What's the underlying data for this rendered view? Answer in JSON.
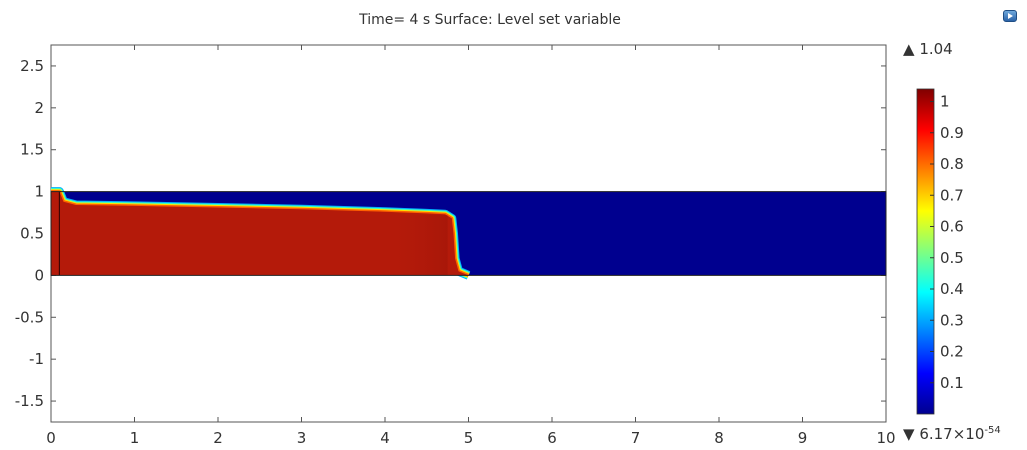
{
  "title": "Time= 4 s Surface: Level set variable",
  "max_label": {
    "symbol": "▲",
    "value": "1.04"
  },
  "min_label": {
    "symbol": "▼",
    "mantissa": "6.17×10",
    "exponent": "-54"
  },
  "colors": {
    "fluid_high": "#b41a0a",
    "fluid_low": "#00008f",
    "colormap": [
      "#00008f",
      "#0000ff",
      "#0080ff",
      "#00ffff",
      "#80ff80",
      "#ffff00",
      "#ff8000",
      "#ff0000",
      "#800000"
    ]
  },
  "chart_data": {
    "type": "heatmap",
    "title": "Time= 4 s Surface: Level set variable",
    "xlabel": "",
    "ylabel": "",
    "xlim": [
      0,
      10
    ],
    "ylim": [
      -1.75,
      2.75
    ],
    "x_ticks": [
      "0",
      "1",
      "2",
      "3",
      "4",
      "5",
      "6",
      "7",
      "8",
      "9",
      "10"
    ],
    "y_ticks": [
      "2.5",
      "2",
      "1.5",
      "1",
      "0.5",
      "0",
      "-0.5",
      "-1",
      "-1.5"
    ],
    "y_tick_values": [
      2.5,
      2,
      1.5,
      1,
      0.5,
      0,
      -0.5,
      -1,
      -1.5
    ],
    "domain": {
      "x": [
        0,
        10
      ],
      "y": [
        0,
        1
      ]
    },
    "interface_profile": [
      [
        0.1,
        1.0
      ],
      [
        0.15,
        0.88
      ],
      [
        0.3,
        0.84
      ],
      [
        1,
        0.83
      ],
      [
        2,
        0.81
      ],
      [
        3,
        0.79
      ],
      [
        4,
        0.76
      ],
      [
        4.5,
        0.74
      ],
      [
        4.72,
        0.73
      ],
      [
        4.8,
        0.68
      ],
      [
        4.82,
        0.5
      ],
      [
        4.84,
        0.2
      ],
      [
        4.88,
        0.05
      ],
      [
        5.0,
        0.0
      ]
    ],
    "wall_line_x": 0.1,
    "colorbar": {
      "min": 0,
      "max": 1.04,
      "ticks": [
        "1",
        "0.9",
        "0.8",
        "0.7",
        "0.6",
        "0.5",
        "0.4",
        "0.3",
        "0.2",
        "0.1"
      ],
      "tick_values": [
        1,
        0.9,
        0.8,
        0.7,
        0.6,
        0.5,
        0.4,
        0.3,
        0.2,
        0.1
      ]
    }
  }
}
